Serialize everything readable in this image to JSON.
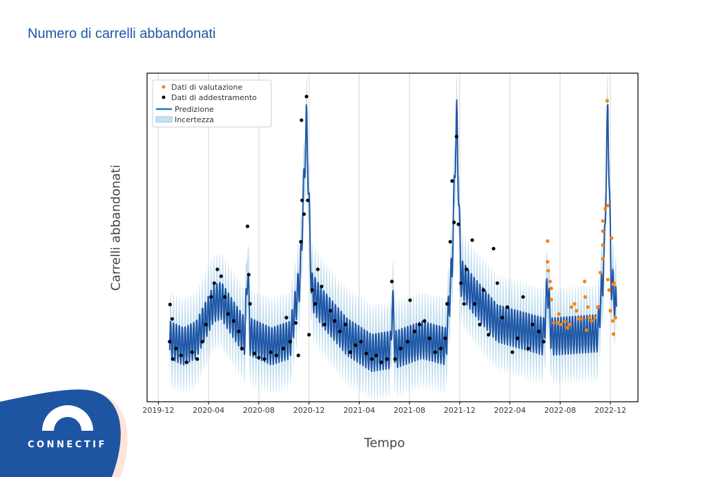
{
  "page": {
    "title": "Numero di carrelli abbandonati"
  },
  "logo": {
    "text": "CONNECTIF"
  },
  "colors": {
    "title": "#1f57a6",
    "prediction": "#1f57a6",
    "uncertainty": "#a8d0e8",
    "training": "#000000",
    "evaluation": "#ff7f0e",
    "brand": "#1d55a3"
  },
  "chart_data": {
    "type": "scatter",
    "title": "Numero di carrelli abbandonati",
    "xlabel": "Tempo",
    "ylabel": "Carrelli abbandonati",
    "x_unit": "months since 2019-12",
    "xlim": [
      -0.9,
      38.2
    ],
    "ylim": [
      0,
      100
    ],
    "grid": "vertical",
    "legend_position": "top-left",
    "x_ticks": [
      {
        "value": 0,
        "label": "2019-12"
      },
      {
        "value": 4,
        "label": "2020-04"
      },
      {
        "value": 8,
        "label": "2020-08"
      },
      {
        "value": 12,
        "label": "2020-12"
      },
      {
        "value": 16,
        "label": "2021-04"
      },
      {
        "value": 20,
        "label": "2021-08"
      },
      {
        "value": 24,
        "label": "2021-12"
      },
      {
        "value": 28,
        "label": "2022-04"
      },
      {
        "value": 32,
        "label": "2022-08"
      },
      {
        "value": 36,
        "label": "2022-12"
      }
    ],
    "legend": [
      {
        "key": "evaluation",
        "label": "Dati di valutazione"
      },
      {
        "key": "training",
        "label": "Dati di addestramento"
      },
      {
        "key": "prediction",
        "label": "Predizione"
      },
      {
        "key": "uncertainty",
        "label": "Incertezza"
      }
    ],
    "prediction_trend": [
      [
        0.9,
        19
      ],
      [
        2,
        17
      ],
      [
        3,
        19
      ],
      [
        4.4,
        30
      ],
      [
        5,
        31
      ],
      [
        6,
        25
      ],
      [
        6.9,
        20
      ],
      [
        7.1,
        42
      ],
      [
        7.3,
        20
      ],
      [
        9,
        17
      ],
      [
        10.5,
        19
      ],
      [
        11.3,
        38
      ],
      [
        11.8,
        86
      ],
      [
        12.2,
        34
      ],
      [
        13,
        29
      ],
      [
        15,
        20
      ],
      [
        17,
        15
      ],
      [
        18.5,
        16
      ],
      [
        18.65,
        32
      ],
      [
        18.85,
        16
      ],
      [
        21,
        19
      ],
      [
        22.9,
        17
      ],
      [
        23.4,
        42
      ],
      [
        23.75,
        88
      ],
      [
        24.1,
        38
      ],
      [
        25,
        33
      ],
      [
        27,
        24
      ],
      [
        30.7,
        20
      ],
      [
        31,
        36
      ],
      [
        31.3,
        20
      ],
      [
        35,
        21
      ],
      [
        35.5,
        42
      ],
      [
        35.8,
        90
      ],
      [
        36.05,
        38
      ],
      [
        36.5,
        28
      ]
    ],
    "weekly_amplitude": 6,
    "uncertainty_halfwidth": 9,
    "series": [
      {
        "name": "Dati di addestramento",
        "key": "training",
        "points": [
          [
            0.93,
            29.6
          ],
          [
            1.1,
            25.2
          ],
          [
            0.9,
            18.3
          ],
          [
            1.15,
            13
          ],
          [
            1.4,
            16.2
          ],
          [
            1.8,
            14.1
          ],
          [
            2.25,
            12
          ],
          [
            2.7,
            15.1
          ],
          [
            3.1,
            13
          ],
          [
            3.5,
            18.3
          ],
          [
            3.8,
            23.5
          ],
          [
            4.2,
            31.9
          ],
          [
            4.45,
            36.1
          ],
          [
            4.7,
            40.3
          ],
          [
            5,
            38.2
          ],
          [
            5.3,
            31.9
          ],
          [
            5.55,
            26.7
          ],
          [
            6,
            24.6
          ],
          [
            6.4,
            21.4
          ],
          [
            6.65,
            16.2
          ],
          [
            7.1,
            53.4
          ],
          [
            7.2,
            38.7
          ],
          [
            7.3,
            29.8
          ],
          [
            7.65,
            14.7
          ],
          [
            8,
            13.4
          ],
          [
            8.45,
            13
          ],
          [
            8.95,
            15.1
          ],
          [
            9.4,
            14.1
          ],
          [
            9.95,
            16.2
          ],
          [
            10.2,
            25.6
          ],
          [
            10.5,
            18.3
          ],
          [
            10.95,
            24
          ],
          [
            11.15,
            14.1
          ],
          [
            11.35,
            48.7
          ],
          [
            11.45,
            61.3
          ],
          [
            11.6,
            57.1
          ],
          [
            11.8,
            92.9
          ],
          [
            11.4,
            85.7
          ],
          [
            11.9,
            61.3
          ],
          [
            12,
            20.4
          ],
          [
            12.25,
            34
          ],
          [
            12.5,
            29.8
          ],
          [
            12.7,
            40.3
          ],
          [
            13,
            35.1
          ],
          [
            13.25,
            23.5
          ],
          [
            13.7,
            27.7
          ],
          [
            14.05,
            24.6
          ],
          [
            14.45,
            21.4
          ],
          [
            14.9,
            23.5
          ],
          [
            15.3,
            15.1
          ],
          [
            15.7,
            17.2
          ],
          [
            16.15,
            18.3
          ],
          [
            16.55,
            14.7
          ],
          [
            17,
            13
          ],
          [
            17.35,
            14.1
          ],
          [
            17.75,
            12
          ],
          [
            18.2,
            13
          ],
          [
            18.6,
            36.6
          ],
          [
            18.85,
            13
          ],
          [
            19.3,
            16.2
          ],
          [
            19.85,
            18.3
          ],
          [
            20.05,
            30.9
          ],
          [
            20.4,
            21.4
          ],
          [
            20.8,
            23.5
          ],
          [
            21.2,
            24.6
          ],
          [
            21.6,
            19.3
          ],
          [
            22.05,
            15.1
          ],
          [
            22.5,
            16.2
          ],
          [
            22.85,
            19.3
          ],
          [
            23,
            29.8
          ],
          [
            23.25,
            48.7
          ],
          [
            23.4,
            67.2
          ],
          [
            23.55,
            54.6
          ],
          [
            23.75,
            80.7
          ],
          [
            23.9,
            54
          ],
          [
            24.1,
            36.1
          ],
          [
            24.35,
            29.8
          ],
          [
            24.55,
            40.3
          ],
          [
            25,
            49.2
          ],
          [
            25.2,
            29.8
          ],
          [
            25.6,
            23.5
          ],
          [
            25.9,
            34
          ],
          [
            26.3,
            20.4
          ],
          [
            26.7,
            46.6
          ],
          [
            27,
            36.1
          ],
          [
            27.4,
            25.6
          ],
          [
            27.8,
            28.8
          ],
          [
            28.2,
            15.1
          ],
          [
            28.6,
            19.3
          ],
          [
            29.05,
            31.9
          ],
          [
            29.45,
            16.2
          ],
          [
            29.8,
            23.5
          ],
          [
            30.3,
            21.4
          ],
          [
            30.7,
            18.3
          ]
        ]
      },
      {
        "name": "Dati di valutazione",
        "key": "evaluation",
        "points": [
          [
            31,
            48.9
          ],
          [
            31,
            42.6
          ],
          [
            31.05,
            39.9
          ],
          [
            31.2,
            36.6
          ],
          [
            31.3,
            34.5
          ],
          [
            31.3,
            31.1
          ],
          [
            31.9,
            26.7
          ],
          [
            31.5,
            24
          ],
          [
            31.85,
            24
          ],
          [
            32.1,
            23.5
          ],
          [
            32.4,
            24.4
          ],
          [
            32.6,
            22.5
          ],
          [
            32.8,
            23.5
          ],
          [
            32.9,
            28.8
          ],
          [
            33.15,
            29.8
          ],
          [
            33.3,
            27.7
          ],
          [
            33.5,
            25.2
          ],
          [
            33.75,
            25.2
          ],
          [
            33.95,
            36.6
          ],
          [
            34,
            31.9
          ],
          [
            34.2,
            28.8
          ],
          [
            34.1,
            21.8
          ],
          [
            34.3,
            25.6
          ],
          [
            34.5,
            24.6
          ],
          [
            34.75,
            25.6
          ],
          [
            35,
            28.8
          ],
          [
            35.2,
            39.3
          ],
          [
            35.4,
            43.5
          ],
          [
            35.4,
            47.7
          ],
          [
            35.4,
            55
          ],
          [
            35.4,
            51.9
          ],
          [
            35.6,
            58.8
          ],
          [
            35.8,
            59.7
          ],
          [
            35.75,
            91.6
          ],
          [
            36.1,
            49.8
          ],
          [
            35.8,
            37.2
          ],
          [
            35.9,
            34
          ],
          [
            36,
            27.7
          ],
          [
            36.2,
            35.7
          ],
          [
            36.3,
            36.1
          ],
          [
            36.2,
            24.6
          ],
          [
            36.25,
            20.6
          ],
          [
            36.4,
            25.6
          ]
        ]
      }
    ]
  }
}
